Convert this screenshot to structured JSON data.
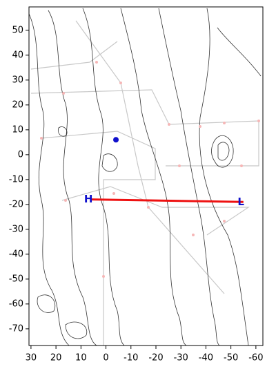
{
  "chart_data": {
    "type": "contour-map",
    "xlim": [
      30.8,
      -62.8
    ],
    "ylim": [
      -76.7,
      59.4
    ],
    "xticks": [
      30,
      20,
      10,
      0,
      -10,
      -20,
      -30,
      -40,
      -50,
      -60
    ],
    "yticks": [
      50,
      40,
      30,
      20,
      10,
      0,
      -10,
      -20,
      -30,
      -40,
      -50,
      -60,
      -70
    ],
    "line": {
      "color": "#ee1111",
      "x": [
        6,
        -55
      ],
      "y": [
        -18,
        -19
      ]
    },
    "marker": {
      "color": "#1010cc",
      "x": -4,
      "y": 6
    },
    "annotations": [
      {
        "text": "H",
        "x": 7,
        "y": -18,
        "color": "#1010cc"
      },
      {
        "text": "L",
        "x": -54,
        "y": -19,
        "color": "#1010cc"
      }
    ]
  }
}
